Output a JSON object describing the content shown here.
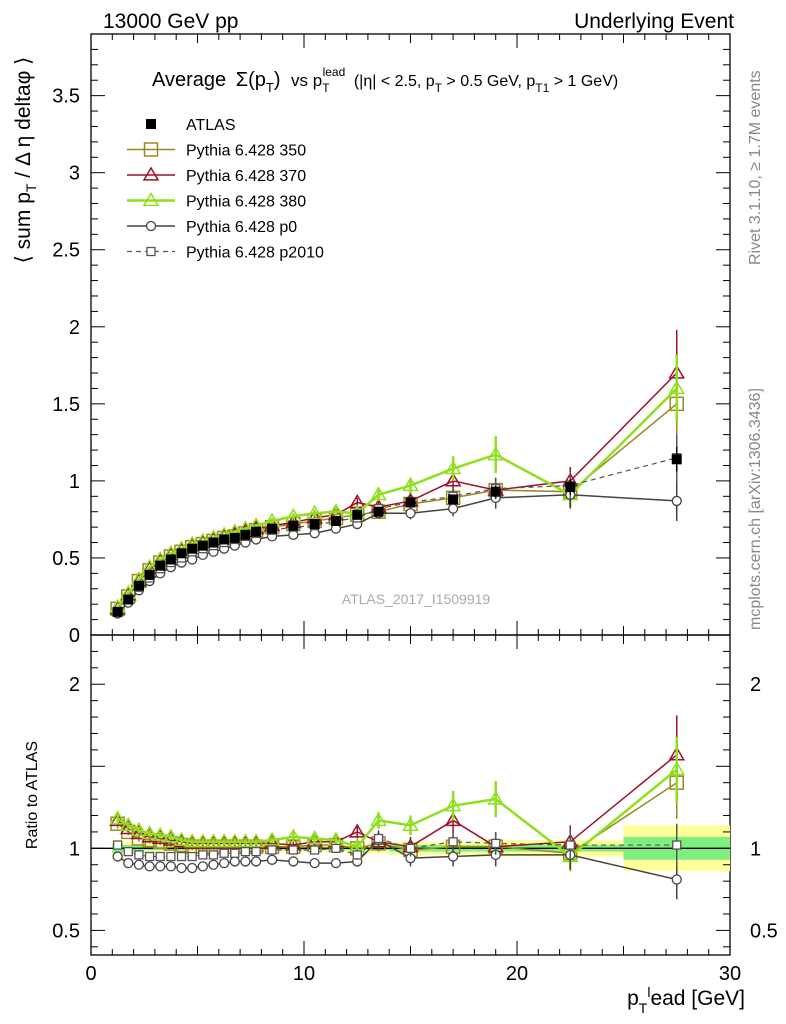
{
  "header": {
    "left": "13000 GeV pp",
    "right": "Underlying Event"
  },
  "plot_title": {
    "main": "Average",
    "full_text": "Average Σ(pT) vs pT lead (|η| < 2.5, pT > 0.5 GeV, pT1 > 1 GeV)"
  },
  "side_labels": {
    "rivet": "Rivet 3.1.10, ≥ 1.7M events",
    "mcplots": "mcplots.cern.ch [arXiv:1306.3436]"
  },
  "watermark": "ATLAS_2017_I1509919",
  "ratio_ylabel": "Ratio to ATLAS",
  "xlabel": "p_T^lead [GeV]",
  "colors": {
    "atlas": "#000000",
    "p350": "#9a8a22",
    "p370": "#a0102a",
    "p380": "#8fe01c",
    "p0": "#444444",
    "p2010": "#555555",
    "band_stat": "#7ff07f",
    "band_total": "#ffff99"
  },
  "chart_data": [
    {
      "type": "line",
      "title": "Average Σ(pT) vs pT lead (|η| < 2.5, pT > 0.5 GeV, pT1 > 1 GeV)",
      "ylabel": "⟨ sum pT / Δη deltaφ ⟩",
      "xlabel": "",
      "xlim": [
        0,
        30
      ],
      "ylim": [
        0,
        3.9
      ],
      "yticks": [
        0,
        0.5,
        1,
        1.5,
        2,
        2.5,
        3,
        3.5
      ],
      "legend_position": "top-left",
      "x": [
        1.25,
        1.75,
        2.25,
        2.75,
        3.25,
        3.75,
        4.25,
        4.75,
        5.25,
        5.75,
        6.25,
        6.75,
        7.25,
        7.75,
        8.5,
        9.5,
        10.5,
        11.5,
        12.5,
        13.5,
        15.0,
        17.0,
        19.0,
        22.5,
        27.5
      ],
      "series": [
        {
          "name": "ATLAS",
          "style": "atlas",
          "values": [
            0.15,
            0.23,
            0.32,
            0.39,
            0.45,
            0.49,
            0.53,
            0.56,
            0.58,
            0.6,
            0.62,
            0.63,
            0.65,
            0.67,
            0.69,
            0.71,
            0.72,
            0.74,
            0.78,
            0.8,
            0.86,
            0.88,
            0.93,
            0.96,
            1.14
          ],
          "errors": [
            0.01,
            0.01,
            0.01,
            0.01,
            0.01,
            0.01,
            0.01,
            0.01,
            0.01,
            0.01,
            0.01,
            0.01,
            0.01,
            0.01,
            0.01,
            0.01,
            0.01,
            0.01,
            0.02,
            0.02,
            0.02,
            0.03,
            0.04,
            0.05,
            0.08
          ]
        },
        {
          "name": "Pythia 6.428 350",
          "style": "p350",
          "values": [
            0.17,
            0.25,
            0.35,
            0.42,
            0.47,
            0.51,
            0.54,
            0.57,
            0.59,
            0.61,
            0.63,
            0.64,
            0.66,
            0.68,
            0.7,
            0.72,
            0.74,
            0.76,
            0.78,
            0.8,
            0.85,
            0.89,
            0.94,
            0.93,
            1.5
          ],
          "errors": [
            0.01,
            0.01,
            0.01,
            0.01,
            0.01,
            0.01,
            0.01,
            0.01,
            0.01,
            0.01,
            0.01,
            0.01,
            0.01,
            0.01,
            0.01,
            0.02,
            0.02,
            0.02,
            0.03,
            0.04,
            0.05,
            0.06,
            0.08,
            0.09,
            0.25
          ]
        },
        {
          "name": "Pythia 6.428 370",
          "style": "p370",
          "values": [
            0.17,
            0.26,
            0.35,
            0.43,
            0.48,
            0.52,
            0.55,
            0.58,
            0.6,
            0.62,
            0.64,
            0.65,
            0.67,
            0.69,
            0.71,
            0.73,
            0.76,
            0.78,
            0.86,
            0.83,
            0.87,
            1.0,
            0.94,
            1.0,
            1.7
          ],
          "errors": [
            0.01,
            0.01,
            0.01,
            0.01,
            0.01,
            0.01,
            0.01,
            0.01,
            0.01,
            0.01,
            0.01,
            0.01,
            0.01,
            0.01,
            0.02,
            0.02,
            0.02,
            0.03,
            0.03,
            0.04,
            0.05,
            0.07,
            0.08,
            0.09,
            0.28
          ]
        },
        {
          "name": "Pythia 6.428 380",
          "style": "p380",
          "values": [
            0.18,
            0.27,
            0.36,
            0.44,
            0.49,
            0.53,
            0.56,
            0.59,
            0.61,
            0.63,
            0.65,
            0.67,
            0.69,
            0.71,
            0.74,
            0.77,
            0.79,
            0.8,
            0.79,
            0.91,
            0.97,
            1.08,
            1.17,
            0.91,
            1.6
          ],
          "errors": [
            0.01,
            0.01,
            0.01,
            0.01,
            0.01,
            0.01,
            0.01,
            0.01,
            0.01,
            0.01,
            0.01,
            0.01,
            0.01,
            0.01,
            0.02,
            0.02,
            0.02,
            0.03,
            0.03,
            0.04,
            0.05,
            0.08,
            0.12,
            0.08,
            0.22
          ]
        },
        {
          "name": "Pythia 6.428 p0",
          "style": "p0",
          "values": [
            0.14,
            0.21,
            0.29,
            0.35,
            0.4,
            0.44,
            0.47,
            0.49,
            0.52,
            0.54,
            0.56,
            0.58,
            0.6,
            0.62,
            0.64,
            0.65,
            0.66,
            0.69,
            0.72,
            0.79,
            0.79,
            0.82,
            0.89,
            0.91,
            0.87
          ],
          "errors": [
            0.01,
            0.01,
            0.01,
            0.01,
            0.01,
            0.01,
            0.01,
            0.01,
            0.01,
            0.01,
            0.01,
            0.01,
            0.01,
            0.01,
            0.01,
            0.01,
            0.02,
            0.02,
            0.03,
            0.03,
            0.04,
            0.05,
            0.07,
            0.09,
            0.13
          ]
        },
        {
          "name": "Pythia 6.428 p2010",
          "style": "p2010",
          "values": [
            0.15,
            0.23,
            0.31,
            0.37,
            0.43,
            0.47,
            0.5,
            0.54,
            0.56,
            0.58,
            0.6,
            0.62,
            0.64,
            0.66,
            0.68,
            0.7,
            0.71,
            0.74,
            0.76,
            0.82,
            0.86,
            0.9,
            0.95,
            0.97,
            1.15
          ],
          "errors": [
            0.01,
            0.01,
            0.01,
            0.01,
            0.01,
            0.01,
            0.01,
            0.01,
            0.01,
            0.01,
            0.01,
            0.01,
            0.01,
            0.01,
            0.01,
            0.02,
            0.02,
            0.02,
            0.03,
            0.03,
            0.04,
            0.05,
            0.07,
            0.09,
            0.15
          ]
        }
      ]
    },
    {
      "type": "line",
      "title": "",
      "ylabel": "Ratio to ATLAS",
      "xlabel": "p_T^lead [GeV]",
      "xlim": [
        0,
        30
      ],
      "ylim": [
        0.35,
        2.3
      ],
      "yticks": [
        0.5,
        1,
        2
      ],
      "xticks": [
        0,
        10,
        20,
        30
      ],
      "reference_line": 1,
      "uncertainty_bands": [
        {
          "x": [
            1.0,
            1.5,
            2.0,
            2.5,
            3.0,
            3.5,
            4.0,
            4.5,
            5.0,
            5.5,
            6.0,
            6.5,
            7.0,
            7.5,
            8.0,
            9.0,
            10.0,
            11.0,
            12.0,
            13.0,
            14.0,
            16.0,
            18.0,
            20.0,
            25.0,
            30.0
          ],
          "stat": [
            0.03,
            0.02,
            0.02,
            0.01,
            0.01,
            0.01,
            0.01,
            0.01,
            0.01,
            0.01,
            0.01,
            0.01,
            0.01,
            0.01,
            0.01,
            0.01,
            0.01,
            0.01,
            0.01,
            0.01,
            0.02,
            0.02,
            0.02,
            0.02,
            0.07
          ],
          "total": [
            0.05,
            0.04,
            0.03,
            0.03,
            0.02,
            0.02,
            0.02,
            0.02,
            0.02,
            0.02,
            0.02,
            0.02,
            0.02,
            0.02,
            0.02,
            0.02,
            0.02,
            0.02,
            0.03,
            0.03,
            0.04,
            0.04,
            0.05,
            0.05,
            0.14
          ]
        }
      ],
      "x": [
        1.25,
        1.75,
        2.25,
        2.75,
        3.25,
        3.75,
        4.25,
        4.75,
        5.25,
        5.75,
        6.25,
        6.75,
        7.25,
        7.75,
        8.5,
        9.5,
        10.5,
        11.5,
        12.5,
        13.5,
        15.0,
        17.0,
        19.0,
        22.5,
        27.5
      ],
      "series": [
        {
          "name": "Pythia 6.428 350",
          "style": "p350",
          "values": [
            1.15,
            1.1,
            1.06,
            1.05,
            1.04,
            1.03,
            1.02,
            1.01,
            1.01,
            1.01,
            1.01,
            1.01,
            1.01,
            1.01,
            1.01,
            1.01,
            1.02,
            1.02,
            1.0,
            1.03,
            0.99,
            1.01,
            1.01,
            0.97,
            1.4
          ],
          "errors": [
            0.03,
            0.02,
            0.02,
            0.02,
            0.02,
            0.02,
            0.02,
            0.02,
            0.02,
            0.02,
            0.02,
            0.02,
            0.02,
            0.02,
            0.02,
            0.02,
            0.03,
            0.03,
            0.03,
            0.05,
            0.06,
            0.07,
            0.08,
            0.09,
            0.22
          ]
        },
        {
          "name": "Pythia 6.428 370",
          "style": "p370",
          "values": [
            1.17,
            1.12,
            1.09,
            1.07,
            1.06,
            1.05,
            1.04,
            1.03,
            1.03,
            1.03,
            1.03,
            1.03,
            1.03,
            1.03,
            1.03,
            1.02,
            1.04,
            1.04,
            1.1,
            1.04,
            1.01,
            1.17,
            1.01,
            1.04,
            1.57
          ],
          "errors": [
            0.03,
            0.02,
            0.02,
            0.02,
            0.02,
            0.02,
            0.02,
            0.02,
            0.02,
            0.02,
            0.02,
            0.02,
            0.02,
            0.02,
            0.02,
            0.02,
            0.03,
            0.03,
            0.04,
            0.05,
            0.06,
            0.08,
            0.09,
            0.1,
            0.24
          ]
        },
        {
          "name": "Pythia 6.428 380",
          "style": "p380",
          "values": [
            1.18,
            1.14,
            1.11,
            1.09,
            1.08,
            1.07,
            1.05,
            1.04,
            1.04,
            1.04,
            1.04,
            1.04,
            1.04,
            1.04,
            1.05,
            1.07,
            1.06,
            1.05,
            1.01,
            1.17,
            1.14,
            1.26,
            1.3,
            0.95,
            1.48
          ],
          "errors": [
            0.03,
            0.02,
            0.02,
            0.02,
            0.02,
            0.02,
            0.02,
            0.02,
            0.02,
            0.02,
            0.02,
            0.02,
            0.02,
            0.02,
            0.02,
            0.03,
            0.03,
            0.03,
            0.04,
            0.05,
            0.06,
            0.09,
            0.11,
            0.09,
            0.2
          ]
        },
        {
          "name": "Pythia 6.428 p0",
          "style": "p0",
          "values": [
            0.95,
            0.91,
            0.9,
            0.89,
            0.89,
            0.89,
            0.88,
            0.88,
            0.89,
            0.9,
            0.91,
            0.92,
            0.92,
            0.92,
            0.93,
            0.92,
            0.91,
            0.91,
            0.92,
            1.05,
            0.94,
            0.95,
            0.96,
            0.96,
            0.81
          ],
          "errors": [
            0.02,
            0.02,
            0.02,
            0.02,
            0.02,
            0.02,
            0.02,
            0.02,
            0.02,
            0.02,
            0.02,
            0.02,
            0.02,
            0.02,
            0.02,
            0.02,
            0.02,
            0.02,
            0.03,
            0.05,
            0.05,
            0.06,
            0.07,
            0.09,
            0.12
          ]
        },
        {
          "name": "Pythia 6.428 p2010",
          "style": "p2010",
          "values": [
            1.02,
            0.98,
            0.96,
            0.95,
            0.95,
            0.95,
            0.95,
            0.95,
            0.96,
            0.96,
            0.97,
            0.97,
            0.98,
            0.98,
            0.99,
            0.99,
            0.99,
            1.0,
            0.96,
            1.06,
            1.0,
            1.04,
            1.03,
            1.02,
            1.02
          ],
          "errors": [
            0.02,
            0.02,
            0.02,
            0.02,
            0.02,
            0.02,
            0.02,
            0.02,
            0.02,
            0.02,
            0.02,
            0.02,
            0.02,
            0.02,
            0.02,
            0.02,
            0.02,
            0.02,
            0.03,
            0.05,
            0.05,
            0.06,
            0.07,
            0.09,
            0.13
          ]
        }
      ]
    }
  ]
}
